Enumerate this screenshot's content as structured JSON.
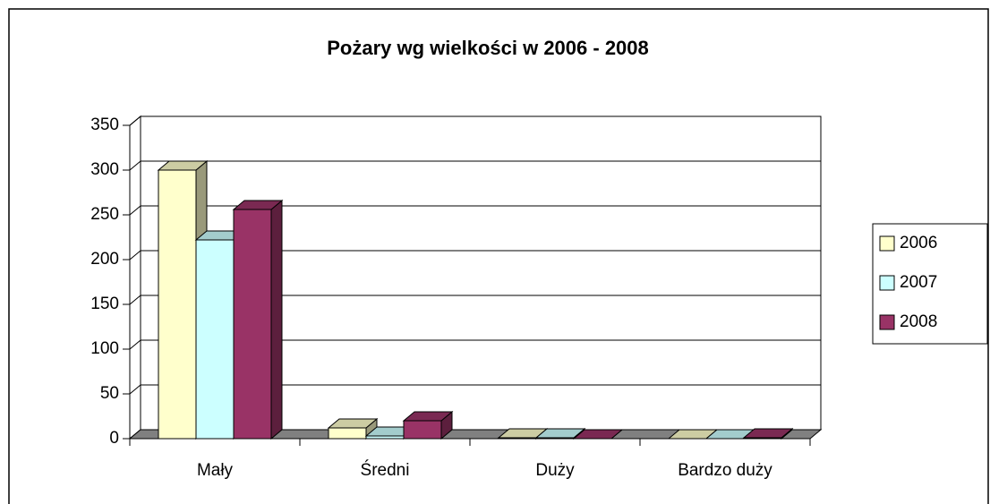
{
  "chart_data": {
    "type": "bar3d",
    "title": "Pożary wg wielkości w 2006 - 2008",
    "categories": [
      "Mały",
      "Średni",
      "Duży",
      "Bardzo duży"
    ],
    "series": [
      {
        "name": "2006",
        "color": "#ffffcc",
        "values": [
          300,
          12,
          1,
          0
        ]
      },
      {
        "name": "2007",
        "color": "#ccffff",
        "values": [
          222,
          3,
          1,
          0
        ]
      },
      {
        "name": "2008",
        "color": "#993366",
        "values": [
          256,
          20,
          0,
          1
        ]
      }
    ],
    "ylim": [
      0,
      350
    ],
    "yticks": [
      0,
      50,
      100,
      150,
      200,
      250,
      300,
      350
    ],
    "grid": true,
    "legend": "right"
  }
}
